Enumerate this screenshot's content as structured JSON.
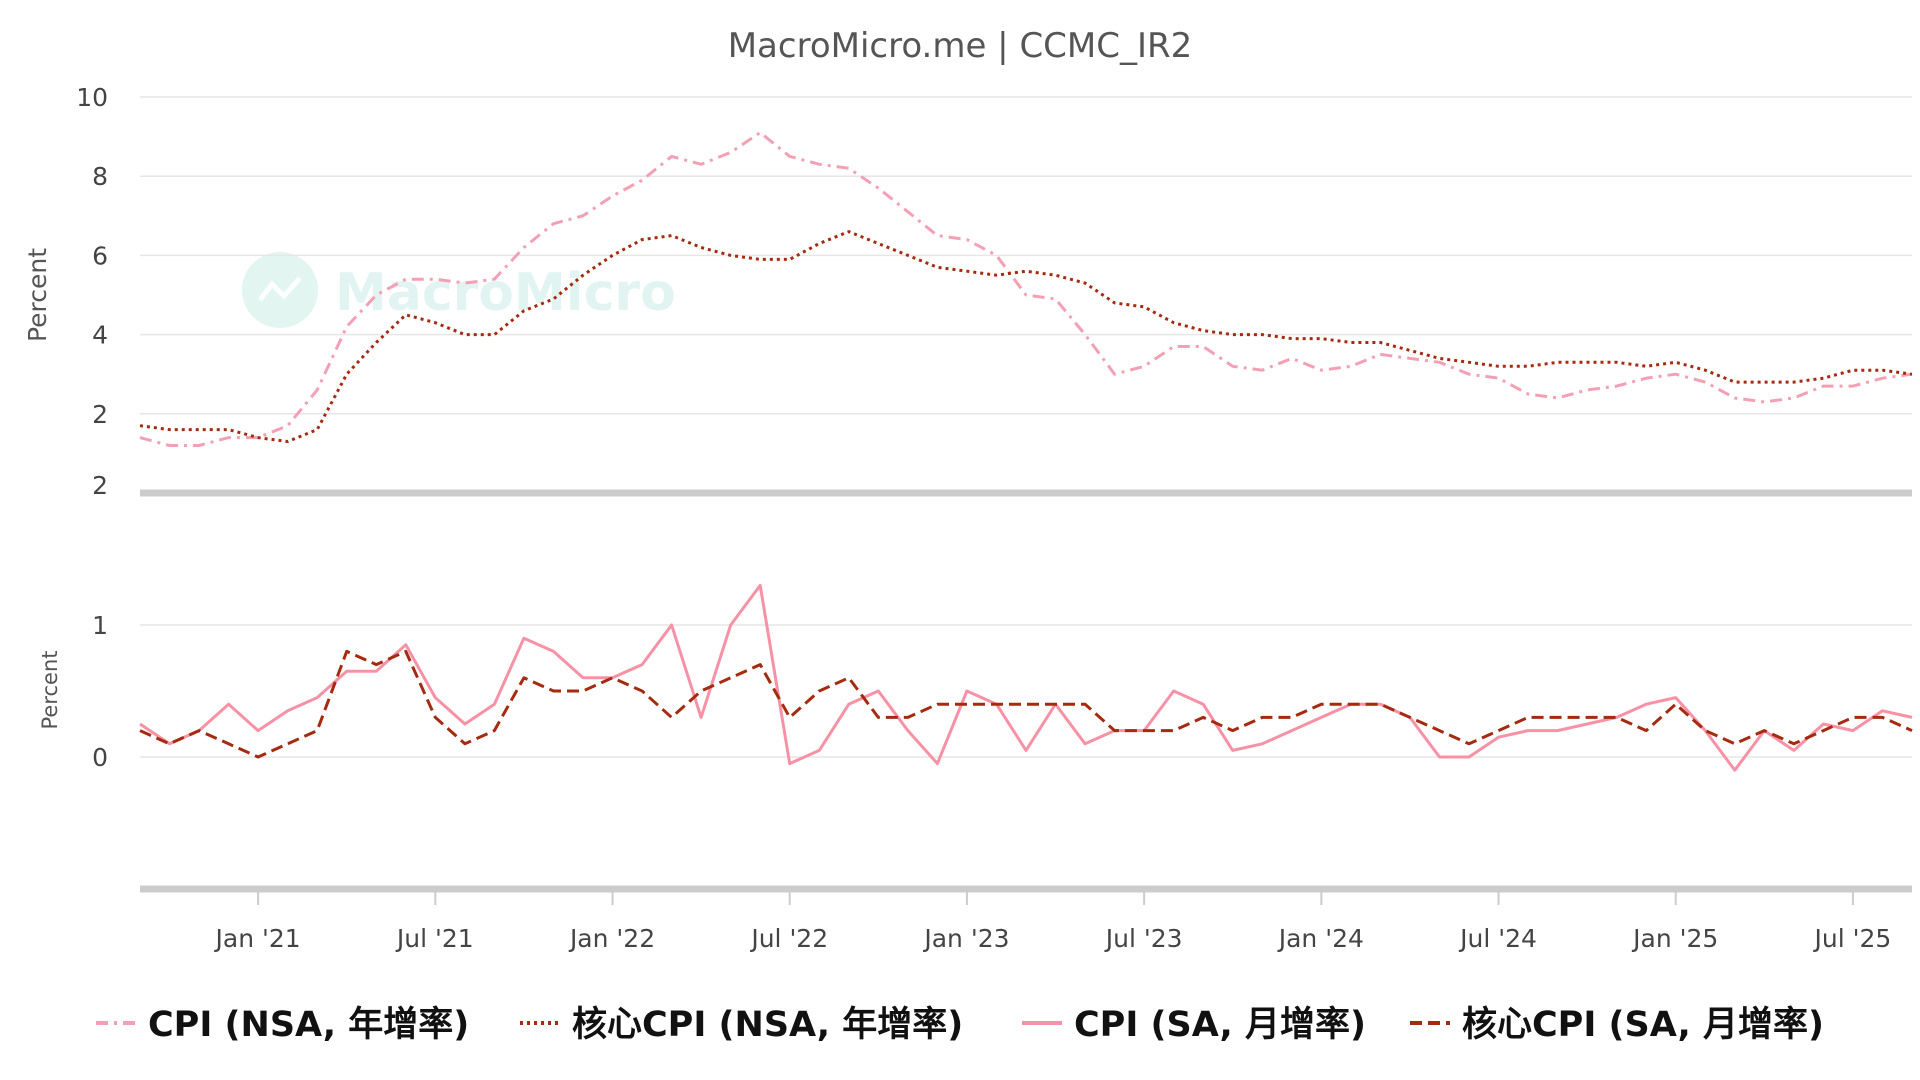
{
  "chart_data": {
    "type": "line",
    "title": "MacroMicro.me | CCMC_IR2",
    "watermark": "MacroMicro",
    "x": [
      "2020-09",
      "2020-10",
      "2020-11",
      "2020-12",
      "2021-01",
      "2021-02",
      "2021-03",
      "2021-04",
      "2021-05",
      "2021-06",
      "2021-07",
      "2021-08",
      "2021-09",
      "2021-10",
      "2021-11",
      "2021-12",
      "2022-01",
      "2022-02",
      "2022-03",
      "2022-04",
      "2022-05",
      "2022-06",
      "2022-07",
      "2022-08",
      "2022-09",
      "2022-10",
      "2022-11",
      "2022-12",
      "2023-01",
      "2023-02",
      "2023-03",
      "2023-04",
      "2023-05",
      "2023-06",
      "2023-07",
      "2023-08",
      "2023-09",
      "2023-10",
      "2023-11",
      "2023-12",
      "2024-01",
      "2024-02",
      "2024-03",
      "2024-04",
      "2024-05",
      "2024-06",
      "2024-07",
      "2024-08",
      "2024-09",
      "2024-10",
      "2024-11",
      "2024-12",
      "2025-01",
      "2025-02",
      "2025-03",
      "2025-04",
      "2025-05",
      "2025-06",
      "2025-07",
      "2025-08",
      "2025-09"
    ],
    "x_ticks": [
      {
        "date": "2021-01",
        "label": "Jan '21"
      },
      {
        "date": "2021-07",
        "label": "Jul '21"
      },
      {
        "date": "2022-01",
        "label": "Jan '22"
      },
      {
        "date": "2022-07",
        "label": "Jul '22"
      },
      {
        "date": "2023-01",
        "label": "Jan '23"
      },
      {
        "date": "2023-07",
        "label": "Jul '23"
      },
      {
        "date": "2024-01",
        "label": "Jan '24"
      },
      {
        "date": "2024-07",
        "label": "Jul '24"
      },
      {
        "date": "2025-01",
        "label": "Jan '25"
      },
      {
        "date": "2025-07",
        "label": "Jul '25"
      }
    ],
    "panels": [
      {
        "ylabel": "Percent",
        "yticks": [
          2,
          4,
          6,
          8,
          10
        ],
        "ylim": [
          0,
          10
        ],
        "bottom_label": "2",
        "series": [
          {
            "name": "CPI (NSA, 年增率)",
            "color": "#f4a0b4",
            "style": "dashdot",
            "values": [
              1.4,
              1.2,
              1.2,
              1.4,
              1.4,
              1.7,
              2.6,
              4.2,
              5.0,
              5.4,
              5.4,
              5.3,
              5.4,
              6.2,
              6.8,
              7.0,
              7.5,
              7.9,
              8.5,
              8.3,
              8.6,
              9.1,
              8.5,
              8.3,
              8.2,
              7.7,
              7.1,
              6.5,
              6.4,
              6.0,
              5.0,
              4.9,
              4.0,
              3.0,
              3.2,
              3.7,
              3.7,
              3.2,
              3.1,
              3.4,
              3.1,
              3.2,
              3.5,
              3.4,
              3.3,
              3.0,
              2.9,
              2.5,
              2.4,
              2.6,
              2.7,
              2.9,
              3.0,
              2.8,
              2.4,
              2.3,
              2.4,
              2.7,
              2.7,
              2.9,
              3.0
            ]
          },
          {
            "name": "核心CPI (NSA, 年增率)",
            "color": "#a52a0f",
            "style": "dotted",
            "values": [
              1.7,
              1.6,
              1.6,
              1.6,
              1.4,
              1.3,
              1.6,
              3.0,
              3.8,
              4.5,
              4.3,
              4.0,
              4.0,
              4.6,
              4.9,
              5.5,
              6.0,
              6.4,
              6.5,
              6.2,
              6.0,
              5.9,
              5.9,
              6.3,
              6.6,
              6.3,
              6.0,
              5.7,
              5.6,
              5.5,
              5.6,
              5.5,
              5.3,
              4.8,
              4.7,
              4.3,
              4.1,
              4.0,
              4.0,
              3.9,
              3.9,
              3.8,
              3.8,
              3.6,
              3.4,
              3.3,
              3.2,
              3.2,
              3.3,
              3.3,
              3.3,
              3.2,
              3.3,
              3.1,
              2.8,
              2.8,
              2.8,
              2.9,
              3.1,
              3.1,
              3.0
            ]
          }
        ]
      },
      {
        "ylabel": "Percent",
        "yticks": [
          0,
          1
        ],
        "ylim": [
          -1,
          2
        ],
        "series": [
          {
            "name": "CPI (SA, 月增率)",
            "color": "#f792a6",
            "style": "solid",
            "values": [
              0.25,
              0.1,
              0.2,
              0.4,
              0.2,
              0.35,
              0.45,
              0.65,
              0.65,
              0.85,
              0.45,
              0.25,
              0.4,
              0.9,
              0.8,
              0.6,
              0.6,
              0.7,
              1.0,
              0.3,
              1.0,
              1.3,
              -0.05,
              0.05,
              0.4,
              0.5,
              0.2,
              -0.05,
              0.5,
              0.4,
              0.05,
              0.4,
              0.1,
              0.2,
              0.2,
              0.5,
              0.4,
              0.05,
              0.1,
              0.2,
              0.3,
              0.4,
              0.4,
              0.3,
              0.0,
              0.0,
              0.15,
              0.2,
              0.2,
              0.25,
              0.3,
              0.4,
              0.45,
              0.2,
              -0.1,
              0.2,
              0.05,
              0.25,
              0.2,
              0.35,
              0.3
            ]
          },
          {
            "name": "核心CPI (SA, 月增率)",
            "color": "#a52a0f",
            "style": "dashed",
            "values": [
              0.2,
              0.1,
              0.2,
              0.1,
              0.0,
              0.1,
              0.2,
              0.8,
              0.7,
              0.8,
              0.3,
              0.1,
              0.2,
              0.6,
              0.5,
              0.5,
              0.6,
              0.5,
              0.3,
              0.5,
              0.6,
              0.7,
              0.3,
              0.5,
              0.6,
              0.3,
              0.3,
              0.4,
              0.4,
              0.4,
              0.4,
              0.4,
              0.4,
              0.2,
              0.2,
              0.2,
              0.3,
              0.2,
              0.3,
              0.3,
              0.4,
              0.4,
              0.4,
              0.3,
              0.2,
              0.1,
              0.2,
              0.3,
              0.3,
              0.3,
              0.3,
              0.2,
              0.4,
              0.2,
              0.1,
              0.2,
              0.1,
              0.2,
              0.3,
              0.3,
              0.2
            ]
          }
        ]
      }
    ],
    "legend": [
      {
        "label": "CPI (NSA, 年增率)",
        "color": "#f4a0b4",
        "style": "dashdot"
      },
      {
        "label": "核心CPI (NSA, 年增率)",
        "color": "#a52a0f",
        "style": "dotted"
      },
      {
        "label": "CPI (SA, 月增率)",
        "color": "#f792a6",
        "style": "solid"
      },
      {
        "label": "核心CPI (SA, 月增率)",
        "color": "#a52a0f",
        "style": "dashed"
      }
    ],
    "legend_position": "bottom",
    "grid": true
  }
}
